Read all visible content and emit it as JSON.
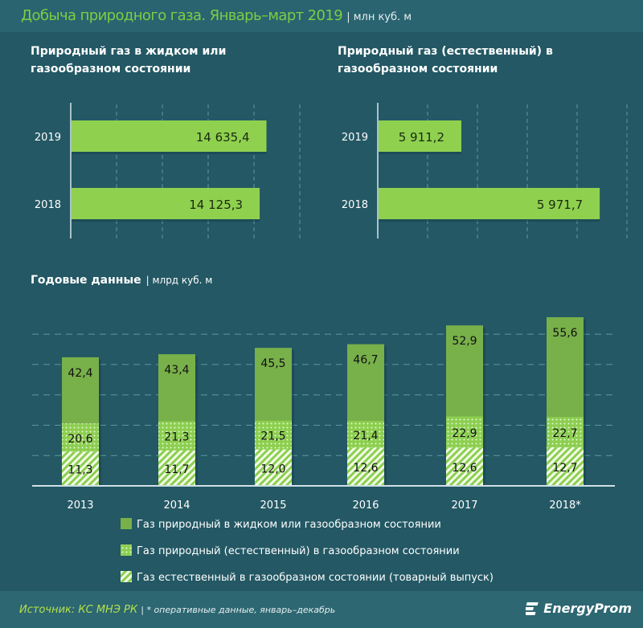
{
  "header": {
    "title": "Добыча природного газа. Январь–март 2019",
    "unit": "| млн куб. м"
  },
  "footer": {
    "source": "Источник: КС МНЭ РК",
    "note": "| * оперативные данные, январь–декабрь",
    "logo": "EnergyProm"
  },
  "colors": {
    "background": "#235864",
    "bar_top": "#8fd14f",
    "bar_main": "#78b04a",
    "bar_dots": "#8ccf4f",
    "title": "#7ccd45"
  },
  "chart_data": [
    {
      "type": "bar",
      "orientation": "horizontal",
      "title": "Природный газ в жидком или газообразном состоянии",
      "categories": [
        "2019",
        "2018"
      ],
      "values": [
        14635.4,
        14125.3
      ],
      "value_labels": [
        "14 635,4",
        "14 125,3"
      ],
      "xlim": [
        0,
        17500
      ],
      "grid": true
    },
    {
      "type": "bar",
      "orientation": "horizontal",
      "title": "Природный газ (естественный) в газообразном состоянии",
      "categories": [
        "2019",
        "2018"
      ],
      "values": [
        5911.2,
        5971.7
      ],
      "value_labels": [
        "5 911,2",
        "5 971,7"
      ],
      "xlim": [
        5875,
        5985
      ],
      "grid": true
    },
    {
      "type": "bar",
      "orientation": "vertical",
      "overlapped": true,
      "title": "Годовые данные",
      "unit": "| млрд куб. м",
      "categories": [
        "2013",
        "2014",
        "2015",
        "2016",
        "2017",
        "2018*"
      ],
      "ylim": [
        0,
        60
      ],
      "grid": true,
      "legend_position": "bottom",
      "series": [
        {
          "name": "Газ природный в жидком или  газообразном состоянии",
          "pattern": "solid",
          "values": [
            42.4,
            43.4,
            45.5,
            46.7,
            52.9,
            55.6
          ],
          "labels": [
            "42,4",
            "43,4",
            "45,5",
            "46,7",
            "52,9",
            "55,6"
          ]
        },
        {
          "name": "Газ природный (естественный) в газообразном состоянии",
          "pattern": "dots",
          "values": [
            20.6,
            21.3,
            21.5,
            21.4,
            22.9,
            22.7
          ],
          "labels": [
            "20,6",
            "21,3",
            "21,5",
            "21,4",
            "22,9",
            "22,7"
          ]
        },
        {
          "name": "Газ естественный в газообразном состоянии (товарный выпуск)",
          "pattern": "hatch",
          "values": [
            11.3,
            11.7,
            12.0,
            12.6,
            12.6,
            12.7
          ],
          "labels": [
            "11,3",
            "11,7",
            "12,0",
            "12,6",
            "12,6",
            "12,7"
          ]
        }
      ]
    }
  ]
}
